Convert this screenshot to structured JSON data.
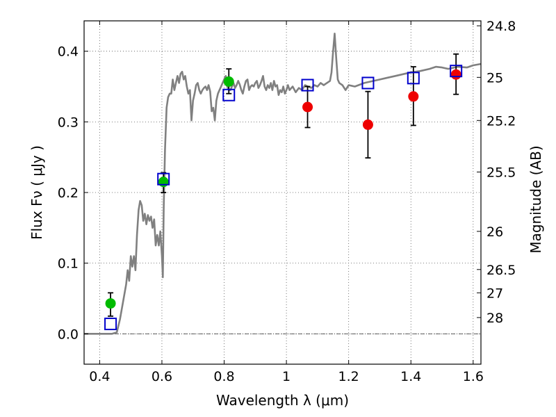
{
  "chart_data": {
    "type": "scatter",
    "title": "",
    "xlabel": "Wavelength  λ (μm)",
    "ylabel": "Flux  Fν  ( μJy )",
    "y2label": "Magnitude (AB)",
    "xlim": [
      0.35,
      1.625
    ],
    "ylim": [
      -0.043,
      0.443
    ],
    "grid": true,
    "x_ticks": [
      0.4,
      0.6,
      0.8,
      1.0,
      1.2,
      1.4,
      1.6
    ],
    "x_tick_labels": [
      "0.4",
      "0.6",
      "0.8",
      "1",
      "1.2",
      "1.4",
      "1.6"
    ],
    "y_ticks": [
      0.0,
      0.1,
      0.2,
      0.3,
      0.4
    ],
    "y_tick_labels": [
      "0.0",
      "0.1",
      "0.2",
      "0.3",
      "0.4"
    ],
    "y2_ticks": [
      {
        "label": "24.8",
        "flux": 0.436
      },
      {
        "label": "25",
        "flux": 0.363
      },
      {
        "label": "25.2",
        "flux": 0.302
      },
      {
        "label": "25.5",
        "flux": 0.229
      },
      {
        "label": "26",
        "flux": 0.145
      },
      {
        "label": "26.5",
        "flux": 0.091
      },
      {
        "label": "27",
        "flux": 0.058
      },
      {
        "label": "28",
        "flux": 0.023
      }
    ],
    "series": [
      {
        "kind": "line",
        "color": "#808080",
        "points": [
          [
            0.35,
            0.0
          ],
          [
            0.44,
            0.0
          ],
          [
            0.455,
            0.002
          ],
          [
            0.465,
            0.02
          ],
          [
            0.475,
            0.045
          ],
          [
            0.485,
            0.07
          ],
          [
            0.49,
            0.09
          ],
          [
            0.495,
            0.075
          ],
          [
            0.5,
            0.11
          ],
          [
            0.505,
            0.095
          ],
          [
            0.51,
            0.11
          ],
          [
            0.515,
            0.09
          ],
          [
            0.52,
            0.14
          ],
          [
            0.525,
            0.175
          ],
          [
            0.53,
            0.188
          ],
          [
            0.535,
            0.182
          ],
          [
            0.54,
            0.16
          ],
          [
            0.545,
            0.17
          ],
          [
            0.55,
            0.155
          ],
          [
            0.555,
            0.168
          ],
          [
            0.56,
            0.16
          ],
          [
            0.565,
            0.166
          ],
          [
            0.57,
            0.15
          ],
          [
            0.575,
            0.162
          ],
          [
            0.58,
            0.125
          ],
          [
            0.585,
            0.14
          ],
          [
            0.59,
            0.125
          ],
          [
            0.595,
            0.145
          ],
          [
            0.6,
            0.11
          ],
          [
            0.603,
            0.08
          ],
          [
            0.606,
            0.18
          ],
          [
            0.61,
            0.26
          ],
          [
            0.615,
            0.32
          ],
          [
            0.62,
            0.335
          ],
          [
            0.625,
            0.34
          ],
          [
            0.63,
            0.34
          ],
          [
            0.635,
            0.36
          ],
          [
            0.64,
            0.345
          ],
          [
            0.645,
            0.355
          ],
          [
            0.65,
            0.365
          ],
          [
            0.655,
            0.355
          ],
          [
            0.66,
            0.368
          ],
          [
            0.665,
            0.371
          ],
          [
            0.67,
            0.36
          ],
          [
            0.675,
            0.365
          ],
          [
            0.68,
            0.35
          ],
          [
            0.685,
            0.34
          ],
          [
            0.69,
            0.345
          ],
          [
            0.695,
            0.302
          ],
          [
            0.7,
            0.33
          ],
          [
            0.705,
            0.34
          ],
          [
            0.71,
            0.352
          ],
          [
            0.715,
            0.355
          ],
          [
            0.72,
            0.345
          ],
          [
            0.725,
            0.34
          ],
          [
            0.73,
            0.345
          ],
          [
            0.735,
            0.348
          ],
          [
            0.74,
            0.35
          ],
          [
            0.745,
            0.345
          ],
          [
            0.75,
            0.352
          ],
          [
            0.755,
            0.343
          ],
          [
            0.76,
            0.315
          ],
          [
            0.765,
            0.32
          ],
          [
            0.77,
            0.302
          ],
          [
            0.775,
            0.33
          ],
          [
            0.78,
            0.34
          ],
          [
            0.785,
            0.345
          ],
          [
            0.79,
            0.35
          ],
          [
            0.795,
            0.355
          ],
          [
            0.8,
            0.36
          ],
          [
            0.805,
            0.365
          ],
          [
            0.81,
            0.35
          ],
          [
            0.815,
            0.345
          ],
          [
            0.82,
            0.345
          ],
          [
            0.825,
            0.35
          ],
          [
            0.83,
            0.355
          ],
          [
            0.835,
            0.348
          ],
          [
            0.84,
            0.352
          ],
          [
            0.845,
            0.358
          ],
          [
            0.85,
            0.353
          ],
          [
            0.855,
            0.345
          ],
          [
            0.86,
            0.34
          ],
          [
            0.865,
            0.35
          ],
          [
            0.87,
            0.358
          ],
          [
            0.875,
            0.36
          ],
          [
            0.88,
            0.345
          ],
          [
            0.885,
            0.35
          ],
          [
            0.89,
            0.352
          ],
          [
            0.895,
            0.35
          ],
          [
            0.9,
            0.355
          ],
          [
            0.905,
            0.358
          ],
          [
            0.91,
            0.348
          ],
          [
            0.915,
            0.352
          ],
          [
            0.92,
            0.358
          ],
          [
            0.925,
            0.365
          ],
          [
            0.93,
            0.35
          ],
          [
            0.935,
            0.345
          ],
          [
            0.94,
            0.352
          ],
          [
            0.945,
            0.348
          ],
          [
            0.95,
            0.355
          ],
          [
            0.955,
            0.345
          ],
          [
            0.96,
            0.358
          ],
          [
            0.965,
            0.35
          ],
          [
            0.97,
            0.352
          ],
          [
            0.975,
            0.338
          ],
          [
            0.98,
            0.345
          ],
          [
            0.985,
            0.342
          ],
          [
            0.99,
            0.35
          ],
          [
            0.995,
            0.34
          ],
          [
            1.0,
            0.345
          ],
          [
            1.005,
            0.352
          ],
          [
            1.01,
            0.345
          ],
          [
            1.02,
            0.35
          ],
          [
            1.03,
            0.342
          ],
          [
            1.04,
            0.348
          ],
          [
            1.05,
            0.345
          ],
          [
            1.06,
            0.352
          ],
          [
            1.07,
            0.35
          ],
          [
            1.08,
            0.348
          ],
          [
            1.09,
            0.352
          ],
          [
            1.1,
            0.35
          ],
          [
            1.11,
            0.355
          ],
          [
            1.12,
            0.352
          ],
          [
            1.13,
            0.355
          ],
          [
            1.14,
            0.358
          ],
          [
            1.145,
            0.37
          ],
          [
            1.15,
            0.4
          ],
          [
            1.155,
            0.425
          ],
          [
            1.16,
            0.39
          ],
          [
            1.165,
            0.36
          ],
          [
            1.17,
            0.355
          ],
          [
            1.18,
            0.352
          ],
          [
            1.19,
            0.345
          ],
          [
            1.2,
            0.352
          ],
          [
            1.22,
            0.35
          ],
          [
            1.25,
            0.355
          ],
          [
            1.28,
            0.358
          ],
          [
            1.3,
            0.36
          ],
          [
            1.32,
            0.362
          ],
          [
            1.35,
            0.365
          ],
          [
            1.38,
            0.368
          ],
          [
            1.4,
            0.37
          ],
          [
            1.43,
            0.372
          ],
          [
            1.46,
            0.375
          ],
          [
            1.48,
            0.378
          ],
          [
            1.5,
            0.377
          ],
          [
            1.52,
            0.375
          ],
          [
            1.55,
            0.378
          ],
          [
            1.58,
            0.377
          ],
          [
            1.6,
            0.38
          ],
          [
            1.625,
            0.382
          ]
        ]
      },
      {
        "kind": "errorbar",
        "color": "#000000",
        "bars": [
          {
            "x": 0.435,
            "low": 0.025,
            "high": 0.058
          },
          {
            "x": 0.605,
            "low": 0.2,
            "high": 0.228
          },
          {
            "x": 0.815,
            "low": 0.34,
            "high": 0.375
          },
          {
            "x": 1.068,
            "low": 0.292,
            "high": 0.35
          },
          {
            "x": 1.262,
            "low": 0.249,
            "high": 0.343
          },
          {
            "x": 1.408,
            "low": 0.295,
            "high": 0.378
          },
          {
            "x": 1.545,
            "low": 0.339,
            "high": 0.396
          }
        ]
      },
      {
        "kind": "marker",
        "marker": "circle",
        "color": "#00bb00",
        "points": [
          [
            0.435,
            0.043
          ],
          [
            0.605,
            0.215
          ],
          [
            0.815,
            0.357
          ]
        ]
      },
      {
        "kind": "marker",
        "marker": "circle",
        "color": "#ee0000",
        "points": [
          [
            1.068,
            0.321
          ],
          [
            1.262,
            0.296
          ],
          [
            1.408,
            0.336
          ],
          [
            1.545,
            0.367
          ]
        ]
      },
      {
        "kind": "marker",
        "marker": "square",
        "color": "#0000cc",
        "points": [
          [
            0.435,
            0.014
          ],
          [
            0.605,
            0.219
          ],
          [
            0.815,
            0.338
          ],
          [
            1.068,
            0.352
          ],
          [
            1.262,
            0.355
          ],
          [
            1.408,
            0.362
          ],
          [
            1.545,
            0.372
          ]
        ]
      }
    ]
  }
}
